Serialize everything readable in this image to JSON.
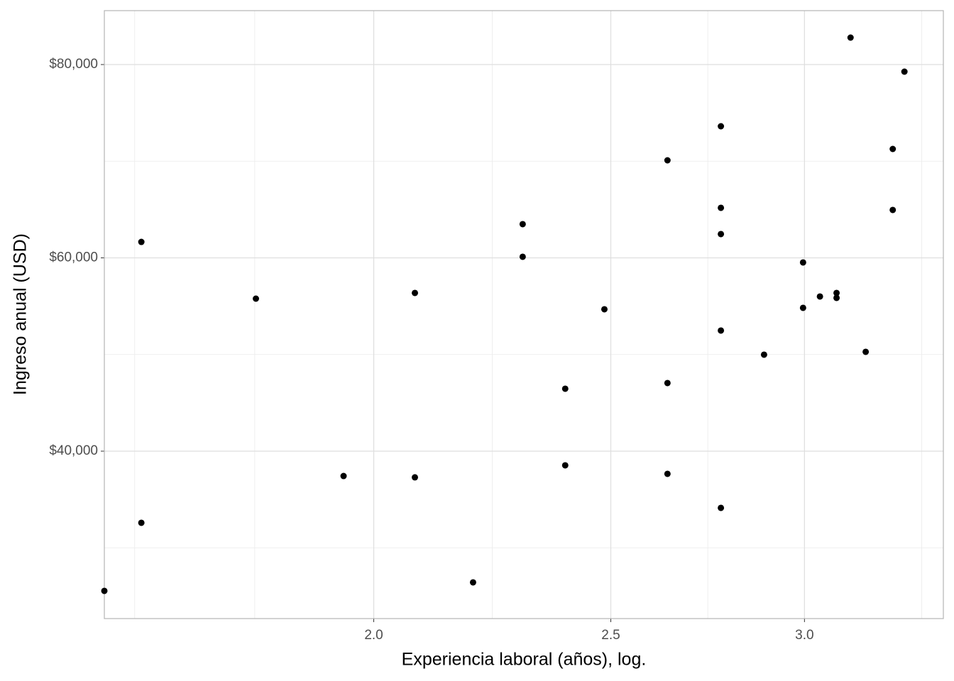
{
  "chart_data": {
    "type": "scatter",
    "x_label": "Experiencia laboral (años), log.",
    "y_label": "Ingreso anual (USD)",
    "xscale": "log",
    "grid": true,
    "color": "#000000",
    "xlim": [
      1.552,
      3.419
    ],
    "ylim": [
      22679,
      85578
    ],
    "xticks": [
      {
        "value": 2,
        "label": "2.0"
      },
      {
        "value": 2.5,
        "label": "2.5"
      },
      {
        "value": 3,
        "label": "3.0"
      }
    ],
    "xminor": [
      1.597,
      1.788,
      2.236,
      2.739,
      3.35
    ],
    "yticks": [
      {
        "value": 40000,
        "label": "$40,000"
      },
      {
        "value": 60000,
        "label": "$60,000"
      },
      {
        "value": 80000,
        "label": "$80,000"
      }
    ],
    "yminor": [
      30000,
      50000,
      70000
    ],
    "x": [
      1.552,
      1.607,
      1.607,
      1.79,
      1.944,
      2.079,
      2.079,
      2.196,
      2.301,
      2.301,
      2.395,
      2.395,
      2.485,
      2.637,
      2.637,
      2.637,
      2.773,
      2.773,
      2.773,
      2.773,
      2.773,
      2.888,
      2.996,
      2.996,
      3.044,
      3.092,
      3.092,
      3.133,
      3.178,
      3.26,
      3.26,
      3.296
    ],
    "values": [
      25545,
      61650,
      32590,
      55780,
      37430,
      56370,
      37290,
      26425,
      63487,
      60112,
      46461,
      38535,
      54680,
      70092,
      47048,
      37655,
      73615,
      65175,
      62460,
      52479,
      34131,
      49983,
      59524,
      54827,
      56002,
      56369,
      55855,
      82789,
      50277,
      71266,
      64955,
      79266
    ]
  }
}
